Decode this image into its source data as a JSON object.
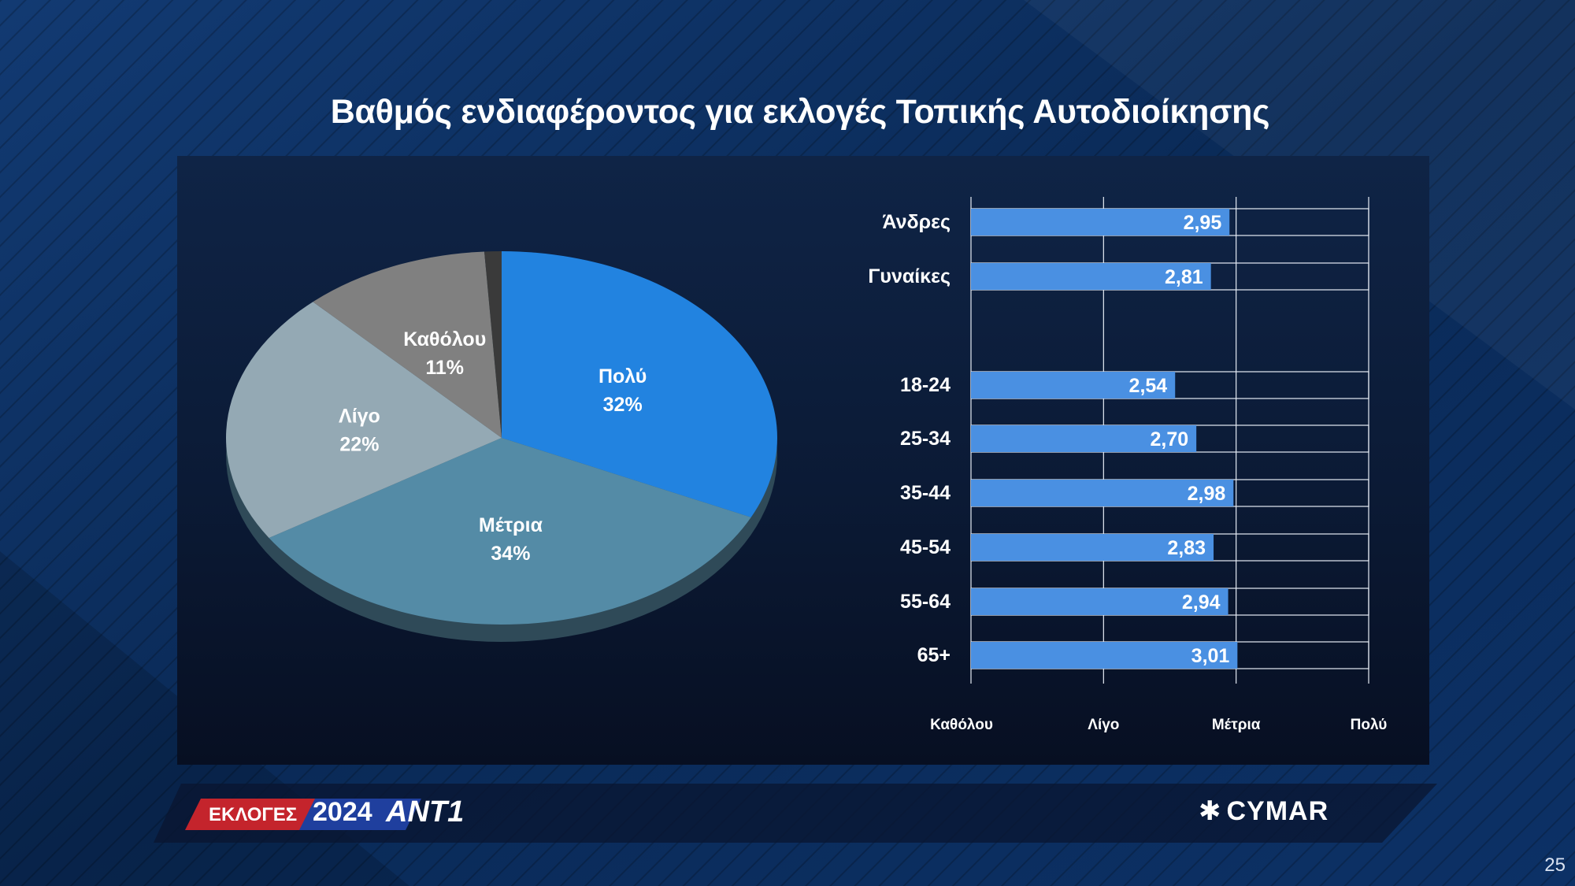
{
  "title": "Βαθμός ενδιαφέροντος για εκλογές Τοπικής Αυτοδιοίκησης",
  "page_number": "25",
  "branding": {
    "election_tag": "ΕΚΛΟΓΕΣ",
    "election_year": "2024",
    "channel": "ANT1",
    "pollster": "CYMAR"
  },
  "colors": {
    "background": "#0b2a55",
    "bar": "#4a90e2",
    "polu": "#2283e0",
    "metria": "#548ba6",
    "ligo": "#94a9b4",
    "katholou": "#808080"
  },
  "chart_data": [
    {
      "type": "pie",
      "slices": [
        {
          "label": "Πολύ",
          "value": 32,
          "display": "32%",
          "color": "#2283e0"
        },
        {
          "label": "Μέτρια",
          "value": 34,
          "display": "34%",
          "color": "#548ba6"
        },
        {
          "label": "Λίγο",
          "value": 22,
          "display": "22%",
          "color": "#94a9b4"
        },
        {
          "label": "Καθόλου",
          "value": 11,
          "display": "11%",
          "color": "#808080"
        }
      ]
    },
    {
      "type": "bar",
      "orientation": "horizontal",
      "categories": [
        "Άνδρες",
        "Γυναίκες",
        "18-24",
        "25-34",
        "35-44",
        "45-54",
        "55-64",
        "65+"
      ],
      "values": [
        2.95,
        2.81,
        2.54,
        2.7,
        2.98,
        2.83,
        2.94,
        3.01
      ],
      "value_labels": [
        "2,95",
        "2,81",
        "2,54",
        "2,70",
        "2,98",
        "2,83",
        "2,94",
        "3,01"
      ],
      "xlim": [
        1,
        4
      ],
      "x_tick_labels": [
        "Καθόλου",
        "Λίγο",
        "Μέτρια",
        "Πολύ"
      ],
      "grid": true
    }
  ]
}
